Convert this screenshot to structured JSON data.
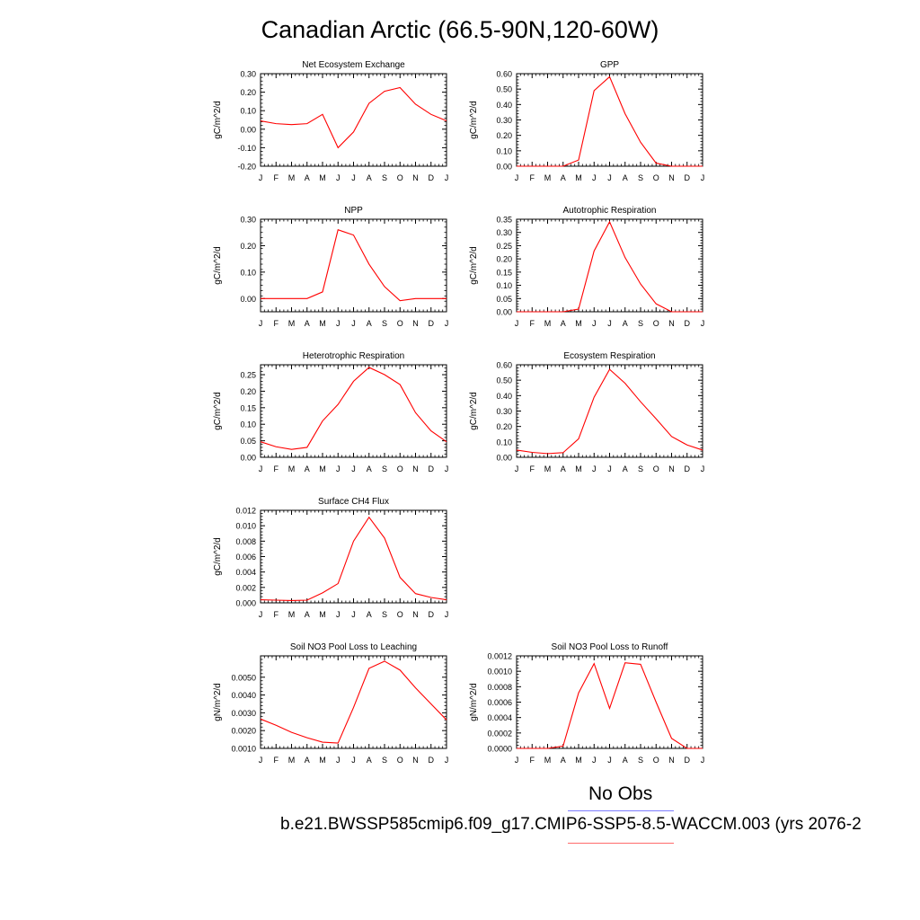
{
  "page": {
    "title": "Canadian Arctic (66.5-90N,120-60W)"
  },
  "legend": {
    "obs_label": "No Obs",
    "obs_color": "#7d7dff",
    "run_label": "b.e21.BWSSP585cmip6.f09_g17.CMIP6-SSP5-8.5-WACCM.003 (yrs 2076-2",
    "run_color": "#ff6b6b"
  },
  "line_color": "#ff0000",
  "chart_data": [
    {
      "type": "line",
      "title": "Net Ecosystem Exchange",
      "ylabel": "gC/m^2/d",
      "x": [
        "J",
        "F",
        "M",
        "A",
        "M",
        "J",
        "J",
        "A",
        "S",
        "O",
        "N",
        "D",
        "J"
      ],
      "ylim": [
        -0.2,
        0.3
      ],
      "yticks": [
        -0.2,
        -0.1,
        0.0,
        0.1,
        0.2,
        0.3
      ],
      "ytick_labels": [
        "-0.20",
        "-0.10",
        "0.00",
        "0.10",
        "0.20",
        "0.30"
      ],
      "series": [
        {
          "values": [
            0.045,
            0.03,
            0.025,
            0.03,
            0.08,
            -0.1,
            -0.015,
            0.14,
            0.205,
            0.225,
            0.135,
            0.08,
            0.045
          ]
        }
      ]
    },
    {
      "type": "line",
      "title": "GPP",
      "ylabel": "gC/m^2/d",
      "x": [
        "J",
        "F",
        "M",
        "A",
        "M",
        "J",
        "J",
        "A",
        "S",
        "O",
        "N",
        "D",
        "J"
      ],
      "ylim": [
        0,
        0.6
      ],
      "yticks": [
        0,
        0.1,
        0.2,
        0.3,
        0.4,
        0.5,
        0.6
      ],
      "ytick_labels": [
        "0.00",
        "0.10",
        "0.20",
        "0.30",
        "0.40",
        "0.50",
        "0.60"
      ],
      "series": [
        {
          "values": [
            0,
            0,
            0,
            0,
            0.04,
            0.49,
            0.58,
            0.34,
            0.155,
            0.02,
            0,
            0,
            0
          ]
        }
      ]
    },
    {
      "type": "line",
      "title": "NPP",
      "ylabel": "gC/m^2/d",
      "x": [
        "J",
        "F",
        "M",
        "A",
        "M",
        "J",
        "J",
        "A",
        "S",
        "O",
        "N",
        "D",
        "J"
      ],
      "ylim": [
        -0.05,
        0.3
      ],
      "yticks": [
        0,
        0.1,
        0.2,
        0.3
      ],
      "ytick_labels": [
        "0.00",
        "0.10",
        "0.20",
        "0.30"
      ],
      "series": [
        {
          "values": [
            0,
            0,
            0,
            0,
            0.025,
            0.26,
            0.24,
            0.13,
            0.045,
            -0.008,
            0,
            0,
            0
          ]
        }
      ]
    },
    {
      "type": "line",
      "title": "Autotrophic Respiration",
      "ylabel": "gC/m^2/d",
      "x": [
        "J",
        "F",
        "M",
        "A",
        "M",
        "J",
        "J",
        "A",
        "S",
        "O",
        "N",
        "D",
        "J"
      ],
      "ylim": [
        0,
        0.35
      ],
      "yticks": [
        0,
        0.05,
        0.1,
        0.15,
        0.2,
        0.25,
        0.3,
        0.35
      ],
      "ytick_labels": [
        "0.00",
        "0.05",
        "0.10",
        "0.15",
        "0.20",
        "0.25",
        "0.30",
        "0.35"
      ],
      "series": [
        {
          "values": [
            0,
            0,
            0,
            0,
            0.01,
            0.23,
            0.34,
            0.205,
            0.105,
            0.03,
            0,
            0,
            0
          ]
        }
      ]
    },
    {
      "type": "line",
      "title": "Heterotrophic Respiration",
      "ylabel": "gC/m^2/d",
      "x": [
        "J",
        "F",
        "M",
        "A",
        "M",
        "J",
        "J",
        "A",
        "S",
        "O",
        "N",
        "D",
        "J"
      ],
      "ylim": [
        0,
        0.28
      ],
      "yticks": [
        0,
        0.05,
        0.1,
        0.15,
        0.2,
        0.25
      ],
      "ytick_labels": [
        "0.00",
        "0.05",
        "0.10",
        "0.15",
        "0.20",
        "0.25"
      ],
      "series": [
        {
          "values": [
            0.047,
            0.032,
            0.024,
            0.03,
            0.11,
            0.16,
            0.23,
            0.272,
            0.25,
            0.22,
            0.135,
            0.08,
            0.047
          ]
        }
      ]
    },
    {
      "type": "line",
      "title": "Ecosystem Respiration",
      "ylabel": "gC/m^2/d",
      "x": [
        "J",
        "F",
        "M",
        "A",
        "M",
        "J",
        "J",
        "A",
        "S",
        "O",
        "N",
        "D",
        "J"
      ],
      "ylim": [
        0,
        0.6
      ],
      "yticks": [
        0,
        0.1,
        0.2,
        0.3,
        0.4,
        0.5,
        0.6
      ],
      "ytick_labels": [
        "0.00",
        "0.10",
        "0.20",
        "0.30",
        "0.40",
        "0.50",
        "0.60"
      ],
      "series": [
        {
          "values": [
            0.047,
            0.032,
            0.024,
            0.03,
            0.12,
            0.39,
            0.57,
            0.48,
            0.36,
            0.25,
            0.135,
            0.08,
            0.047
          ]
        }
      ]
    },
    {
      "type": "line",
      "title": "Surface CH4 Flux",
      "ylabel": "gC/m^2/d",
      "x": [
        "J",
        "F",
        "M",
        "A",
        "M",
        "J",
        "J",
        "A",
        "S",
        "O",
        "N",
        "D",
        "J"
      ],
      "ylim": [
        0,
        0.012
      ],
      "yticks": [
        0,
        0.002,
        0.004,
        0.006,
        0.008,
        0.01,
        0.012
      ],
      "ytick_labels": [
        "0.000",
        "0.002",
        "0.004",
        "0.006",
        "0.008",
        "0.010",
        "0.012"
      ],
      "series": [
        {
          "values": [
            0.0004,
            0.00035,
            0.0003,
            0.00035,
            0.0013,
            0.0025,
            0.008,
            0.0111,
            0.0084,
            0.0033,
            0.0012,
            0.0007,
            0.0004
          ]
        }
      ]
    },
    null,
    {
      "type": "line",
      "title": "Soil NO3 Pool Loss to Leaching",
      "ylabel": "gN/m^2/d",
      "x": [
        "J",
        "F",
        "M",
        "A",
        "M",
        "J",
        "J",
        "A",
        "S",
        "O",
        "N",
        "D",
        "J"
      ],
      "ylim": [
        0.001,
        0.0062
      ],
      "yticks": [
        0.001,
        0.002,
        0.003,
        0.004,
        0.005
      ],
      "ytick_labels": [
        "0.0010",
        "0.0020",
        "0.0030",
        "0.0040",
        "0.0050"
      ],
      "series": [
        {
          "values": [
            0.00265,
            0.0023,
            0.0019,
            0.0016,
            0.00135,
            0.0013,
            0.0033,
            0.0055,
            0.0059,
            0.0054,
            0.0044,
            0.0035,
            0.0026
          ]
        }
      ]
    },
    {
      "type": "line",
      "title": "Soil NO3 Pool Loss to Runoff",
      "ylabel": "gN/m^2/d",
      "x": [
        "J",
        "F",
        "M",
        "A",
        "M",
        "J",
        "J",
        "A",
        "S",
        "O",
        "N",
        "D",
        "J"
      ],
      "ylim": [
        0,
        0.0012
      ],
      "yticks": [
        0,
        0.0002,
        0.0004,
        0.0006,
        0.0008,
        0.001,
        0.0012
      ],
      "ytick_labels": [
        "0.0000",
        "0.0002",
        "0.0004",
        "0.0006",
        "0.0008",
        "0.0010",
        "0.0012"
      ],
      "series": [
        {
          "values": [
            0,
            0,
            0,
            3e-05,
            0.00072,
            0.0011,
            0.00052,
            0.00111,
            0.00109,
            0.0006,
            0.00013,
            0,
            0
          ]
        }
      ]
    }
  ]
}
